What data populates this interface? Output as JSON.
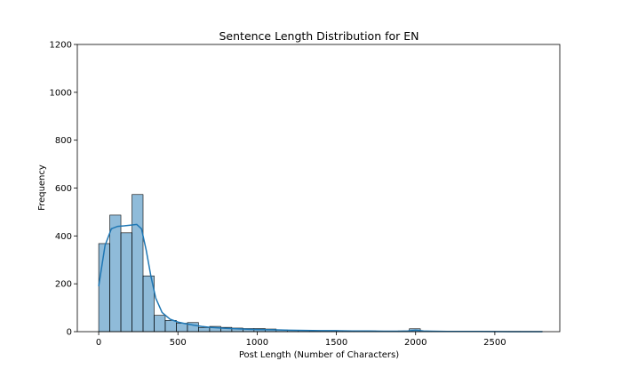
{
  "chart_data": {
    "type": "bar",
    "title": "Sentence Length Distribution for EN",
    "xlabel": "Post Length (Number of Characters)",
    "ylabel": "Frequency",
    "xlim": [
      -135,
      2910
    ],
    "ylim": [
      0,
      1200
    ],
    "x_ticks": [
      0,
      500,
      1000,
      1500,
      2000,
      2500
    ],
    "y_ticks": [
      0,
      200,
      400,
      600,
      800,
      1000,
      1200
    ],
    "grid": false,
    "bin_width": 70,
    "bins": [
      {
        "x0": 0,
        "x1": 70,
        "value": 368
      },
      {
        "x0": 70,
        "x1": 140,
        "value": 487
      },
      {
        "x0": 140,
        "x1": 210,
        "value": 413
      },
      {
        "x0": 210,
        "x1": 280,
        "value": 573
      },
      {
        "x0": 280,
        "x1": 350,
        "value": 233
      },
      {
        "x0": 350,
        "x1": 420,
        "value": 68
      },
      {
        "x0": 420,
        "x1": 490,
        "value": 47
      },
      {
        "x0": 490,
        "x1": 560,
        "value": 35
      },
      {
        "x0": 560,
        "x1": 630,
        "value": 38
      },
      {
        "x0": 630,
        "x1": 700,
        "value": 17
      },
      {
        "x0": 700,
        "x1": 770,
        "value": 22
      },
      {
        "x0": 770,
        "x1": 840,
        "value": 18
      },
      {
        "x0": 840,
        "x1": 910,
        "value": 15
      },
      {
        "x0": 910,
        "x1": 980,
        "value": 13
      },
      {
        "x0": 980,
        "x1": 1050,
        "value": 13
      },
      {
        "x0": 1050,
        "x1": 1120,
        "value": 11
      },
      {
        "x0": 1120,
        "x1": 1190,
        "value": 7
      },
      {
        "x0": 1190,
        "x1": 1260,
        "value": 6
      },
      {
        "x0": 1260,
        "x1": 1330,
        "value": 5
      },
      {
        "x0": 1330,
        "x1": 1400,
        "value": 4
      },
      {
        "x0": 1400,
        "x1": 1470,
        "value": 4
      },
      {
        "x0": 1470,
        "x1": 1540,
        "value": 3
      },
      {
        "x0": 1540,
        "x1": 1610,
        "value": 4
      },
      {
        "x0": 1610,
        "x1": 1680,
        "value": 4
      },
      {
        "x0": 1680,
        "x1": 1750,
        "value": 3
      },
      {
        "x0": 1750,
        "x1": 1820,
        "value": 2
      },
      {
        "x0": 1820,
        "x1": 1890,
        "value": 2
      },
      {
        "x0": 1890,
        "x1": 1960,
        "value": 3
      },
      {
        "x0": 1960,
        "x1": 2030,
        "value": 12
      },
      {
        "x0": 2030,
        "x1": 2100,
        "value": 2
      },
      {
        "x0": 2100,
        "x1": 2170,
        "value": 1
      },
      {
        "x0": 2170,
        "x1": 2240,
        "value": 1
      },
      {
        "x0": 2240,
        "x1": 2310,
        "value": 1
      },
      {
        "x0": 2310,
        "x1": 2380,
        "value": 1
      },
      {
        "x0": 2380,
        "x1": 2450,
        "value": 1
      },
      {
        "x0": 2450,
        "x1": 2520,
        "value": 1
      },
      {
        "x0": 2520,
        "x1": 2590,
        "value": 1
      },
      {
        "x0": 2590,
        "x1": 2660,
        "value": 1
      },
      {
        "x0": 2660,
        "x1": 2730,
        "value": 1
      },
      {
        "x0": 2730,
        "x1": 2800,
        "value": 1
      }
    ],
    "kde": {
      "x": [
        0,
        40,
        80,
        120,
        160,
        200,
        240,
        270,
        300,
        330,
        360,
        400,
        450,
        500,
        550,
        600,
        650,
        700,
        800,
        900,
        1000,
        1100,
        1200,
        1300,
        1400,
        1500,
        1600,
        1700,
        1800,
        1900,
        1950,
        2000,
        2050,
        2100,
        2200,
        2400,
        2600,
        2800
      ],
      "y": [
        190,
        360,
        430,
        440,
        442,
        445,
        448,
        430,
        340,
        230,
        140,
        80,
        52,
        40,
        33,
        27,
        22,
        18,
        14,
        11,
        9,
        8,
        6,
        5,
        4,
        4,
        3,
        3,
        2,
        2,
        3,
        6,
        3,
        2,
        1,
        1,
        0,
        0
      ]
    },
    "colors": {
      "bar_fill": "#1f77b4",
      "bar_fill_opacity": 0.5,
      "bar_edge": "#000000",
      "kde_line": "#1f77b4"
    }
  }
}
